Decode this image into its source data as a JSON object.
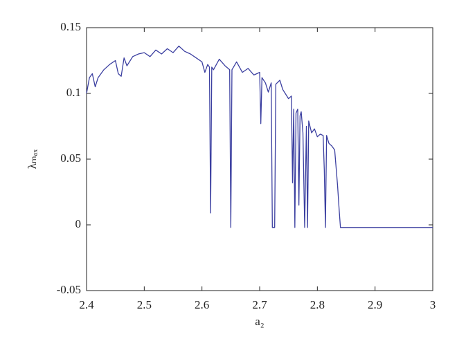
{
  "chart_data": {
    "type": "line",
    "x_label": "a₂",
    "y_label": "λₘₐₓ",
    "color": "#3b3fa0",
    "x": [
      2.4,
      2.405,
      2.41,
      2.415,
      2.42,
      2.43,
      2.44,
      2.45,
      2.455,
      2.46,
      2.465,
      2.47,
      2.48,
      2.49,
      2.5,
      2.51,
      2.52,
      2.53,
      2.54,
      2.55,
      2.56,
      2.57,
      2.58,
      2.59,
      2.6,
      2.605,
      2.61,
      2.613,
      2.615,
      2.617,
      2.62,
      2.63,
      2.64,
      2.648,
      2.65,
      2.652,
      2.66,
      2.67,
      2.68,
      2.69,
      2.7,
      2.702,
      2.704,
      2.71,
      2.715,
      2.72,
      2.722,
      2.726,
      2.728,
      2.735,
      2.74,
      2.75,
      2.755,
      2.757,
      2.759,
      2.761,
      2.763,
      2.766,
      2.768,
      2.77,
      2.772,
      2.775,
      2.778,
      2.781,
      2.783,
      2.785,
      2.79,
      2.795,
      2.8,
      2.805,
      2.81,
      2.812,
      2.814,
      2.816,
      2.82,
      2.825,
      2.83,
      2.835,
      2.838,
      2.84,
      2.9,
      3.0
    ],
    "values": [
      0.1,
      0.112,
      0.115,
      0.105,
      0.112,
      0.118,
      0.122,
      0.125,
      0.115,
      0.113,
      0.127,
      0.121,
      0.128,
      0.13,
      0.131,
      0.128,
      0.133,
      0.13,
      0.134,
      0.131,
      0.136,
      0.132,
      0.13,
      0.127,
      0.124,
      0.116,
      0.122,
      0.12,
      0.009,
      0.12,
      0.118,
      0.126,
      0.121,
      0.118,
      -0.002,
      0.118,
      0.124,
      0.116,
      0.119,
      0.114,
      0.116,
      0.077,
      0.112,
      0.108,
      0.101,
      0.108,
      -0.002,
      -0.002,
      0.107,
      0.11,
      0.103,
      0.096,
      0.098,
      0.032,
      0.088,
      -0.002,
      0.085,
      0.088,
      0.015,
      0.083,
      0.086,
      0.07,
      -0.002,
      0.075,
      -0.002,
      0.079,
      0.07,
      0.073,
      0.067,
      0.069,
      0.068,
      0.042,
      -0.002,
      0.068,
      0.062,
      0.06,
      0.057,
      0.03,
      0.01,
      -0.002,
      -0.002,
      -0.002
    ],
    "xlim": [
      2.4,
      3
    ],
    "xticks": [
      2.4,
      2.5,
      2.6,
      2.7,
      2.8,
      2.9,
      3
    ],
    "ylim": [
      -0.05,
      0.15
    ],
    "yticks": [
      -0.05,
      0,
      0.05,
      0.1,
      0.15
    ]
  }
}
